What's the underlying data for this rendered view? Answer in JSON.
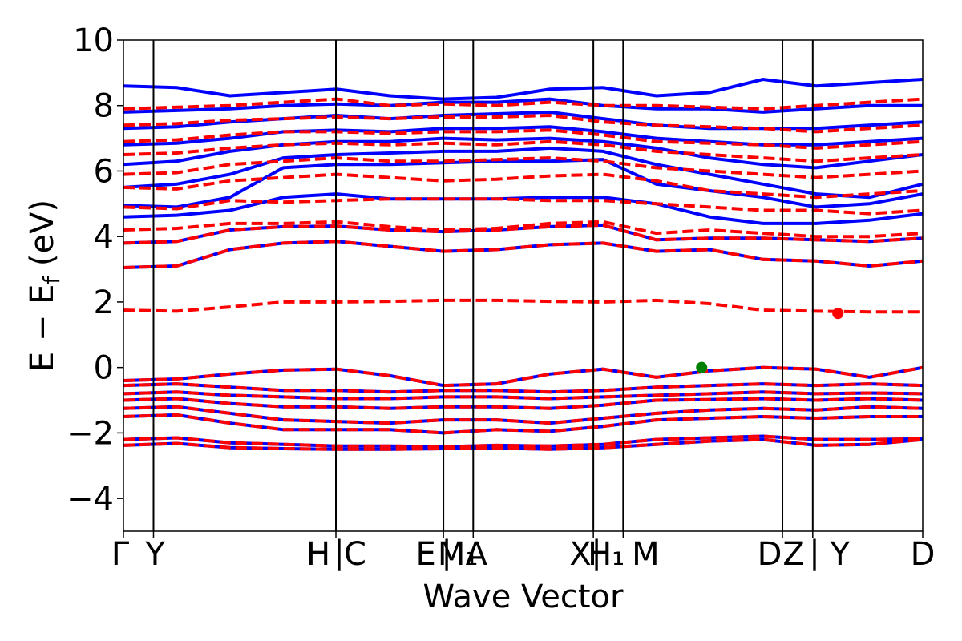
{
  "chart_data": {
    "type": "line",
    "title": "",
    "xlabel": "Wave Vector",
    "ylabel_parts": {
      "main": "E − E",
      "sub": "f",
      "unit": " (eV)"
    },
    "ylim": [
      -5,
      10
    ],
    "yticks": [
      -4,
      -2,
      0,
      2,
      4,
      6,
      8,
      10
    ],
    "ytick_labels": [
      "−4",
      "−2",
      "0",
      "2",
      "4",
      "6",
      "8",
      "10"
    ],
    "grid": false,
    "colors": {
      "solid": "#0000ff",
      "dashed": "#ff0000",
      "vbm": "#008000",
      "cbm": "#ff0000",
      "axis": "#000000"
    },
    "kpath": {
      "total_length": 1.0,
      "segment_boundaries": [
        0.0,
        0.0376,
        0.2658,
        0.4003,
        0.4376,
        0.5879,
        0.6252,
        0.8245,
        0.8624,
        1.0
      ],
      "label_positions": [
        0.0,
        0.0376,
        0.2658,
        0.4003,
        0.4376,
        0.5879,
        0.6252,
        0.8245,
        0.8624,
        1.0
      ],
      "labels": [
        "Γ",
        "Y",
        "H",
        "C",
        "E",
        "M₁",
        "A",
        "X",
        "H₁",
        "M",
        "D",
        "Z",
        "Y",
        "D"
      ],
      "label_x": [
        0.0,
        0.0376,
        0.2658,
        0.2658,
        0.4003,
        0.4003,
        0.4376,
        0.5879,
        0.5879,
        0.6252,
        0.8245,
        0.8245,
        0.8624,
        1.0
      ],
      "separators": [
        {
          "x": 0.2658,
          "text": "|"
        },
        {
          "x": 0.4003,
          "text": "|"
        },
        {
          "x": 0.5879,
          "text": "|"
        },
        {
          "x": 0.8245,
          "text": "|"
        }
      ]
    },
    "markers": [
      {
        "name": "VBM",
        "x": 0.7234,
        "y": 0.0,
        "color": "#008000"
      },
      {
        "name": "CBM",
        "x": 0.8939,
        "y": 1.65,
        "color": "#ff0000"
      }
    ],
    "series_groups": [
      {
        "style": "solid",
        "color": "#0000ff",
        "bands": [
          [
            -2.38,
            -2.32,
            -2.45,
            -2.48,
            -2.5,
            -2.5,
            -2.48,
            -2.46,
            -2.5,
            -2.45,
            -2.35,
            -2.25,
            -2.2,
            -2.38,
            -2.35,
            -2.2
          ],
          [
            -2.2,
            -2.15,
            -2.3,
            -2.35,
            -2.4,
            -2.4,
            -2.42,
            -2.38,
            -2.4,
            -2.35,
            -2.2,
            -2.15,
            -2.1,
            -2.2,
            -2.2,
            -2.18
          ],
          [
            -1.5,
            -1.45,
            -1.7,
            -1.9,
            -1.9,
            -1.9,
            -2.0,
            -1.9,
            -1.95,
            -1.8,
            -1.6,
            -1.55,
            -1.5,
            -1.55,
            -1.5,
            -1.5
          ],
          [
            -1.25,
            -1.2,
            -1.4,
            -1.6,
            -1.65,
            -1.7,
            -1.6,
            -1.6,
            -1.7,
            -1.55,
            -1.4,
            -1.3,
            -1.25,
            -1.3,
            -1.2,
            -1.25
          ],
          [
            -1.0,
            -0.95,
            -1.1,
            -1.2,
            -1.2,
            -1.25,
            -1.2,
            -1.2,
            -1.25,
            -1.15,
            -1.0,
            -0.98,
            -0.95,
            -1.0,
            -0.95,
            -1.0
          ],
          [
            -0.8,
            -0.75,
            -0.85,
            -0.9,
            -0.95,
            -0.95,
            -0.9,
            -0.9,
            -0.95,
            -0.9,
            -0.85,
            -0.8,
            -0.75,
            -0.8,
            -0.78,
            -0.8
          ],
          [
            -0.55,
            -0.5,
            -0.6,
            -0.7,
            -0.7,
            -0.75,
            -0.7,
            -0.7,
            -0.75,
            -0.7,
            -0.6,
            -0.55,
            -0.5,
            -0.55,
            -0.5,
            -0.55
          ],
          [
            -0.4,
            -0.35,
            -0.2,
            -0.08,
            -0.05,
            -0.25,
            -0.55,
            -0.5,
            -0.2,
            -0.05,
            -0.3,
            -0.1,
            0.0,
            -0.05,
            -0.3,
            0.0
          ],
          [
            3.05,
            3.1,
            3.6,
            3.8,
            3.85,
            3.7,
            3.55,
            3.6,
            3.75,
            3.8,
            3.55,
            3.6,
            3.3,
            3.25,
            3.1,
            3.25
          ],
          [
            3.8,
            3.85,
            4.2,
            4.3,
            4.32,
            4.2,
            4.15,
            4.2,
            4.3,
            4.35,
            3.9,
            3.95,
            3.95,
            3.9,
            3.85,
            3.95
          ],
          [
            4.6,
            4.65,
            4.8,
            5.2,
            5.3,
            5.15,
            5.15,
            5.15,
            5.2,
            5.2,
            5.0,
            4.6,
            4.4,
            4.4,
            4.5,
            4.7
          ],
          [
            4.95,
            4.9,
            5.2,
            6.1,
            6.2,
            6.2,
            6.25,
            6.3,
            6.3,
            6.35,
            5.6,
            5.4,
            5.2,
            4.9,
            5.0,
            5.3
          ],
          [
            5.5,
            5.6,
            5.9,
            6.4,
            6.5,
            6.55,
            6.6,
            6.6,
            6.7,
            6.6,
            6.2,
            5.9,
            5.6,
            5.3,
            5.2,
            5.6
          ],
          [
            6.2,
            6.3,
            6.6,
            6.8,
            6.9,
            6.9,
            7.0,
            6.95,
            7.0,
            6.9,
            6.7,
            6.4,
            6.2,
            6.1,
            6.3,
            6.5
          ],
          [
            6.8,
            6.85,
            7.0,
            7.2,
            7.25,
            7.2,
            7.3,
            7.3,
            7.35,
            7.2,
            7.0,
            6.9,
            6.8,
            6.8,
            6.9,
            7.0
          ],
          [
            7.3,
            7.35,
            7.5,
            7.6,
            7.7,
            7.6,
            7.7,
            7.75,
            7.8,
            7.6,
            7.4,
            7.3,
            7.3,
            7.3,
            7.4,
            7.5
          ],
          [
            7.8,
            7.85,
            7.9,
            8.0,
            8.05,
            8.0,
            8.1,
            8.1,
            8.2,
            8.0,
            7.9,
            7.9,
            7.8,
            7.9,
            8.0,
            8.0
          ],
          [
            8.6,
            8.55,
            8.3,
            8.4,
            8.5,
            8.3,
            8.2,
            8.25,
            8.5,
            8.55,
            8.3,
            8.4,
            8.8,
            8.6,
            8.7,
            8.8
          ]
        ]
      },
      {
        "style": "dashed",
        "color": "#ff0000",
        "bands": [
          [
            -2.38,
            -2.32,
            -2.45,
            -2.48,
            -2.5,
            -2.5,
            -2.48,
            -2.46,
            -2.5,
            -2.45,
            -2.35,
            -2.25,
            -2.2,
            -2.38,
            -2.35,
            -2.2
          ],
          [
            -2.2,
            -2.15,
            -2.3,
            -2.35,
            -2.4,
            -2.4,
            -2.42,
            -2.38,
            -2.4,
            -2.35,
            -2.2,
            -2.15,
            -2.1,
            -2.2,
            -2.2,
            -2.18
          ],
          [
            -1.5,
            -1.45,
            -1.7,
            -1.9,
            -1.9,
            -1.9,
            -2.0,
            -1.9,
            -1.95,
            -1.8,
            -1.6,
            -1.55,
            -1.5,
            -1.55,
            -1.5,
            -1.5
          ],
          [
            -1.25,
            -1.2,
            -1.4,
            -1.6,
            -1.65,
            -1.7,
            -1.6,
            -1.6,
            -1.7,
            -1.55,
            -1.4,
            -1.3,
            -1.25,
            -1.3,
            -1.2,
            -1.25
          ],
          [
            -1.0,
            -0.95,
            -1.1,
            -1.2,
            -1.2,
            -1.25,
            -1.2,
            -1.2,
            -1.25,
            -1.15,
            -1.0,
            -0.98,
            -0.95,
            -1.0,
            -0.95,
            -1.0
          ],
          [
            -0.8,
            -0.75,
            -0.85,
            -0.9,
            -0.95,
            -0.95,
            -0.9,
            -0.9,
            -0.95,
            -0.9,
            -0.85,
            -0.8,
            -0.75,
            -0.8,
            -0.78,
            -0.8
          ],
          [
            -0.55,
            -0.5,
            -0.6,
            -0.7,
            -0.7,
            -0.75,
            -0.7,
            -0.7,
            -0.75,
            -0.7,
            -0.6,
            -0.55,
            -0.5,
            -0.55,
            -0.5,
            -0.55
          ],
          [
            -0.4,
            -0.35,
            -0.2,
            -0.08,
            -0.05,
            -0.25,
            -0.55,
            -0.5,
            -0.2,
            -0.05,
            -0.3,
            -0.1,
            0.0,
            -0.05,
            -0.3,
            0.0
          ],
          [
            1.75,
            1.72,
            1.85,
            2.0,
            2.0,
            2.02,
            2.05,
            2.05,
            2.02,
            2.0,
            2.05,
            1.95,
            1.75,
            1.72,
            1.7,
            1.7
          ],
          [
            3.05,
            3.1,
            3.6,
            3.8,
            3.85,
            3.7,
            3.55,
            3.6,
            3.75,
            3.8,
            3.55,
            3.6,
            3.3,
            3.25,
            3.1,
            3.25
          ],
          [
            3.8,
            3.85,
            4.2,
            4.3,
            4.32,
            4.2,
            4.15,
            4.2,
            4.3,
            4.35,
            3.9,
            3.95,
            3.95,
            3.9,
            3.85,
            3.95
          ],
          [
            4.2,
            4.25,
            4.4,
            4.4,
            4.45,
            4.3,
            4.2,
            4.25,
            4.4,
            4.45,
            4.1,
            4.2,
            4.1,
            4.0,
            4.0,
            4.1
          ],
          [
            4.9,
            4.85,
            5.1,
            5.05,
            5.1,
            5.15,
            5.15,
            5.15,
            5.1,
            5.1,
            5.0,
            4.9,
            4.8,
            4.8,
            4.7,
            4.8
          ],
          [
            5.5,
            5.45,
            5.7,
            5.8,
            5.9,
            5.8,
            5.7,
            5.75,
            5.85,
            5.9,
            5.7,
            5.4,
            5.3,
            5.2,
            5.3,
            5.4
          ],
          [
            5.9,
            5.95,
            6.2,
            6.3,
            6.4,
            6.3,
            6.3,
            6.35,
            6.4,
            6.3,
            6.1,
            6.0,
            5.9,
            5.8,
            5.9,
            6.0
          ],
          [
            6.5,
            6.55,
            6.7,
            6.8,
            6.85,
            6.8,
            6.85,
            6.8,
            6.9,
            6.8,
            6.6,
            6.5,
            6.4,
            6.3,
            6.4,
            6.5
          ],
          [
            6.9,
            6.95,
            7.1,
            7.2,
            7.2,
            7.15,
            7.2,
            7.2,
            7.25,
            7.1,
            6.9,
            6.85,
            6.8,
            6.7,
            6.8,
            6.9
          ],
          [
            7.4,
            7.45,
            7.55,
            7.6,
            7.65,
            7.6,
            7.65,
            7.65,
            7.7,
            7.5,
            7.4,
            7.35,
            7.3,
            7.2,
            7.3,
            7.4
          ],
          [
            7.9,
            7.95,
            8.0,
            8.1,
            8.2,
            8.0,
            8.05,
            8.0,
            8.1,
            8.0,
            8.0,
            7.95,
            7.9,
            8.0,
            8.1,
            8.2
          ]
        ]
      }
    ]
  }
}
